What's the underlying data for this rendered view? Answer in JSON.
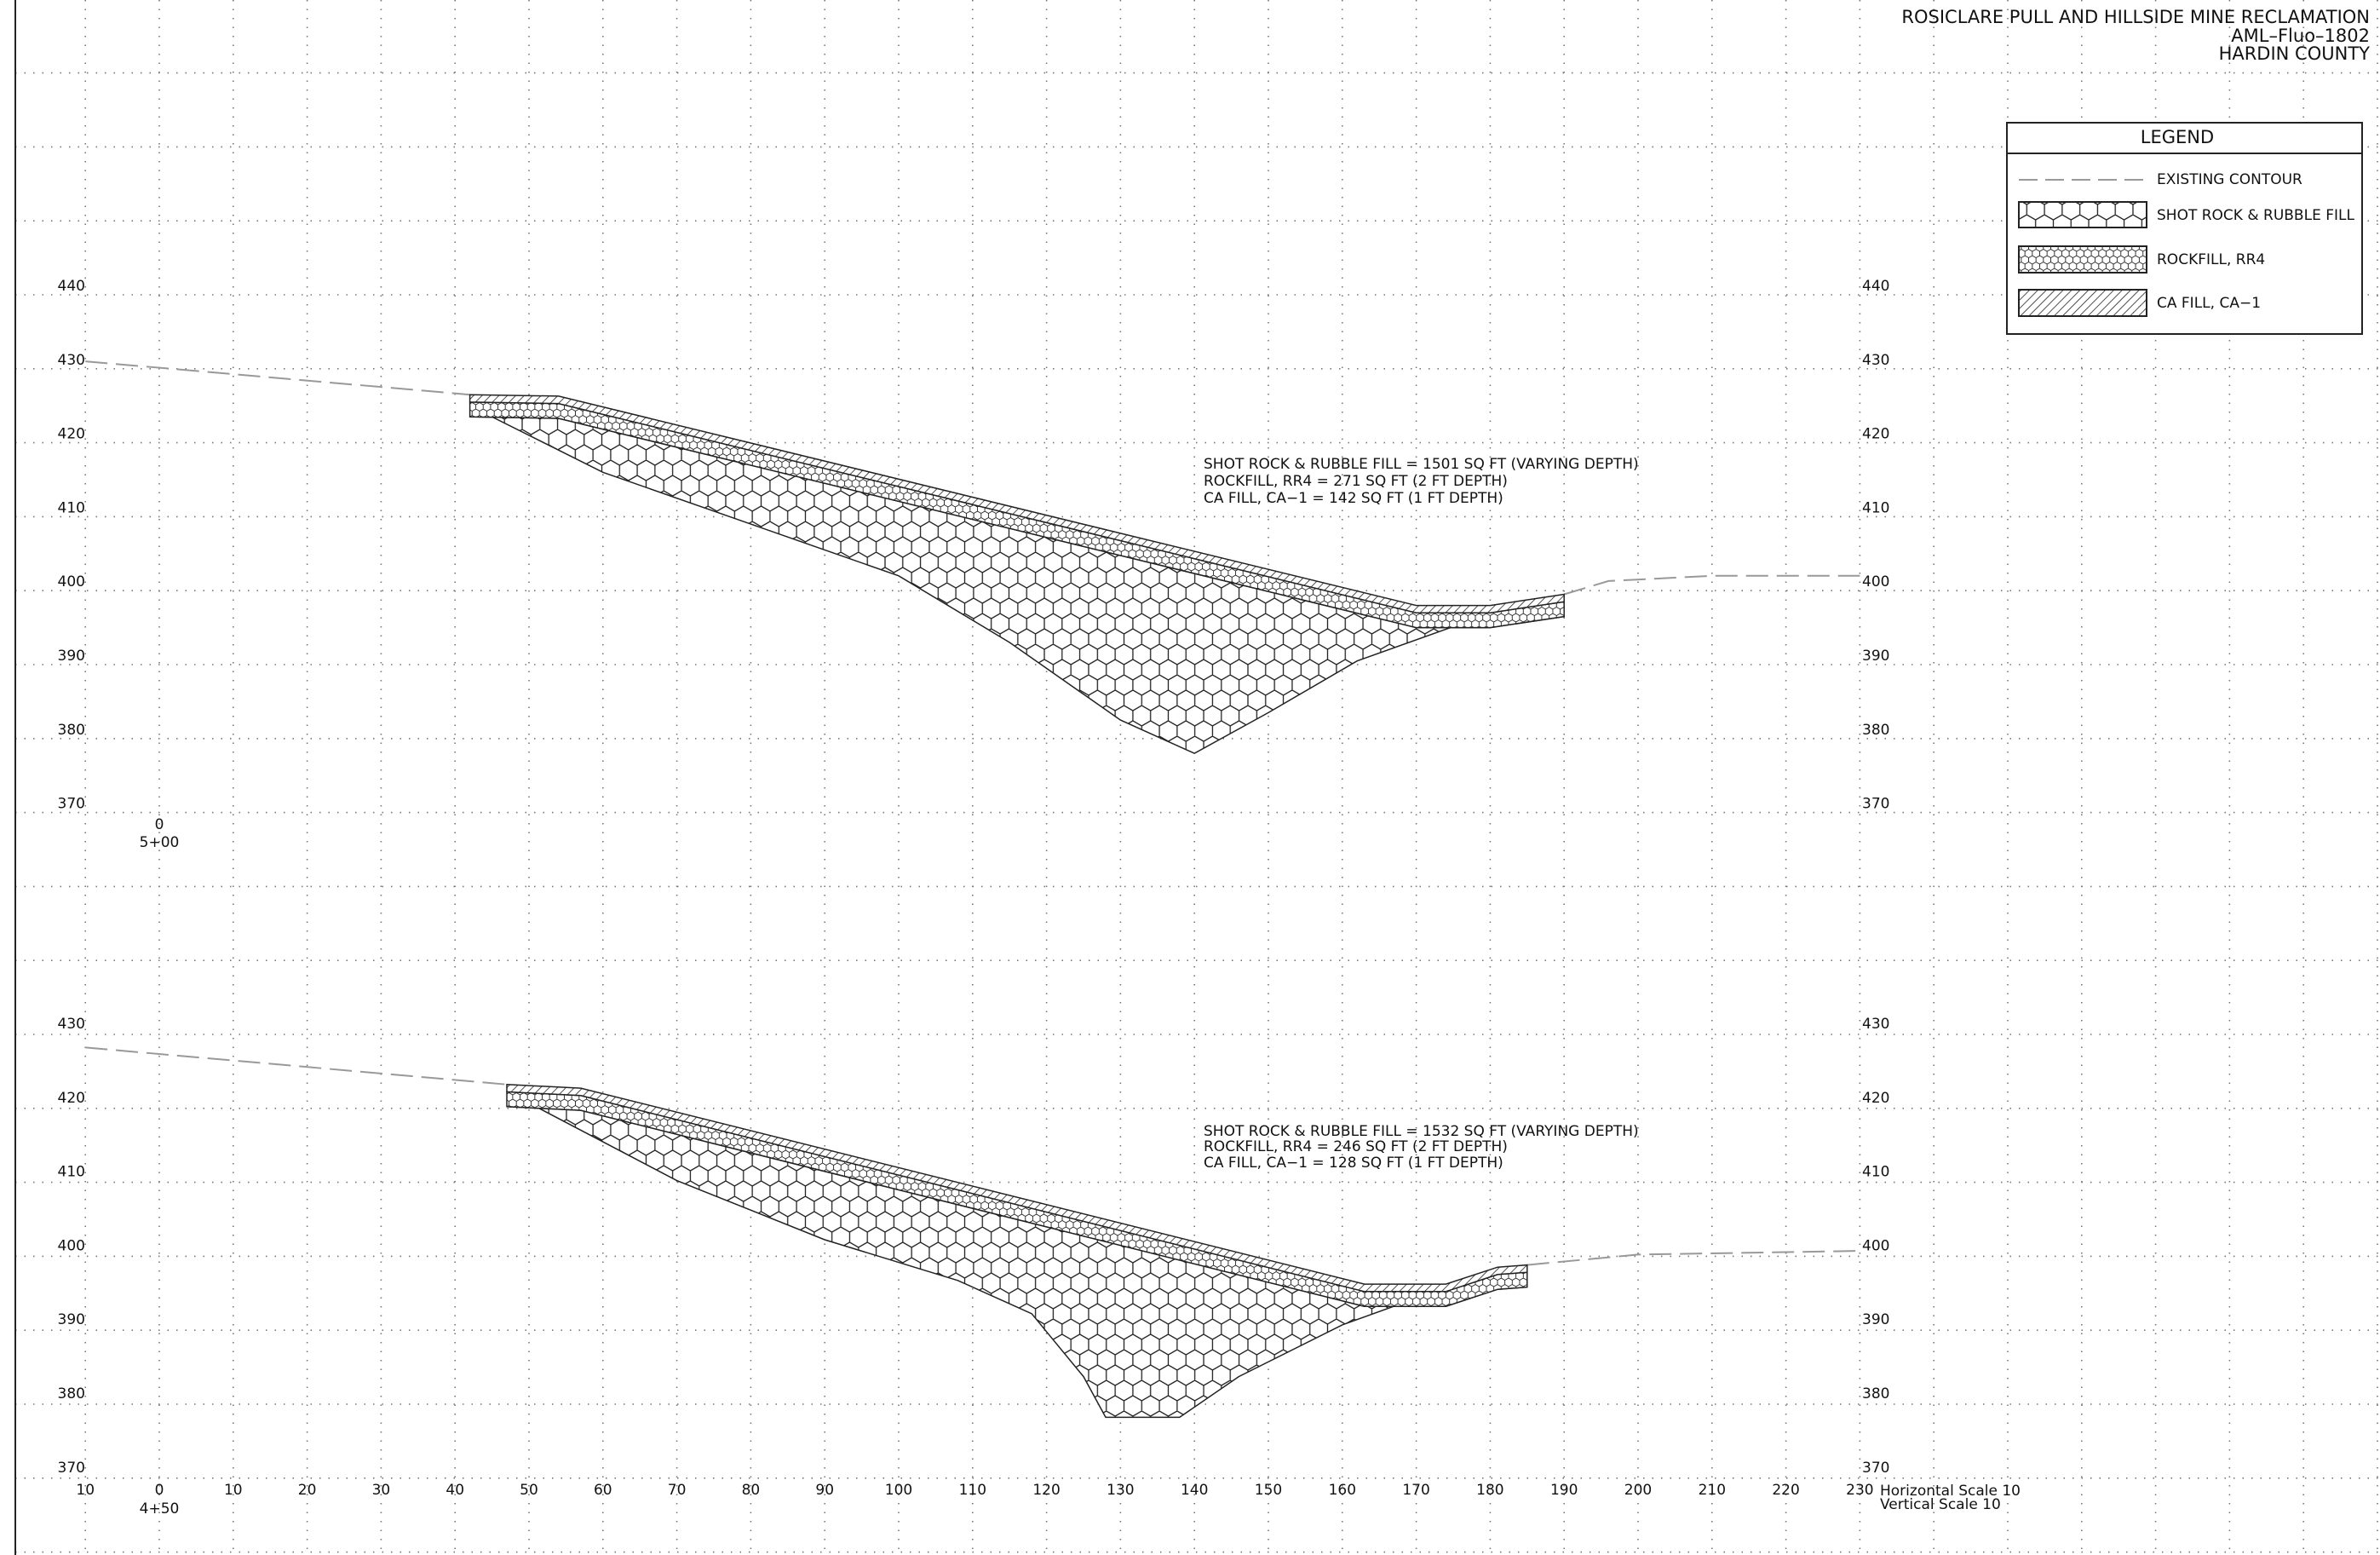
{
  "title_block": {
    "lines": [
      "ROSICLARE PULL AND HILLSIDE MINE RECLAMATION",
      "AML–Fluo–1802",
      "HARDIN COUNTY"
    ]
  },
  "legend": {
    "title": "LEGEND",
    "items": [
      "EXISTING CONTOUR",
      "SHOT ROCK & RUBBLE FILL",
      "ROCKFILL, RR4",
      "CA FILL, CA−1"
    ]
  },
  "sections": [
    {
      "station_offset": "0",
      "station": "5+00",
      "elevations": [
        "440",
        "430",
        "420",
        "410",
        "400",
        "390",
        "380",
        "370"
      ],
      "notes": [
        "SHOT ROCK & RUBBLE FILL = 1501 SQ FT (VARYING DEPTH)",
        "ROCKFILL, RR4 = 271 SQ FT (2 FT DEPTH)",
        "CA FILL, CA−1 = 142 SQ FT (1 FT DEPTH)"
      ]
    },
    {
      "station": "4+50",
      "elevations": [
        "430",
        "420",
        "410",
        "400",
        "390",
        "380",
        "370"
      ],
      "notes": [
        "SHOT ROCK & RUBBLE FILL = 1532 SQ FT (VARYING DEPTH)",
        "ROCKFILL, RR4 = 246 SQ FT (2 FT DEPTH)",
        "CA FILL, CA−1 = 128 SQ FT (1 FT DEPTH)"
      ]
    }
  ],
  "x_axis": {
    "labels": [
      "10",
      "0",
      "10",
      "20",
      "30",
      "40",
      "50",
      "60",
      "70",
      "80",
      "90",
      "100",
      "110",
      "120",
      "130",
      "140",
      "150",
      "160",
      "170",
      "180",
      "190",
      "200",
      "210",
      "220",
      "230"
    ]
  },
  "scale": [
    "Horizontal Scale 10",
    "Vertical Scale 10"
  ]
}
